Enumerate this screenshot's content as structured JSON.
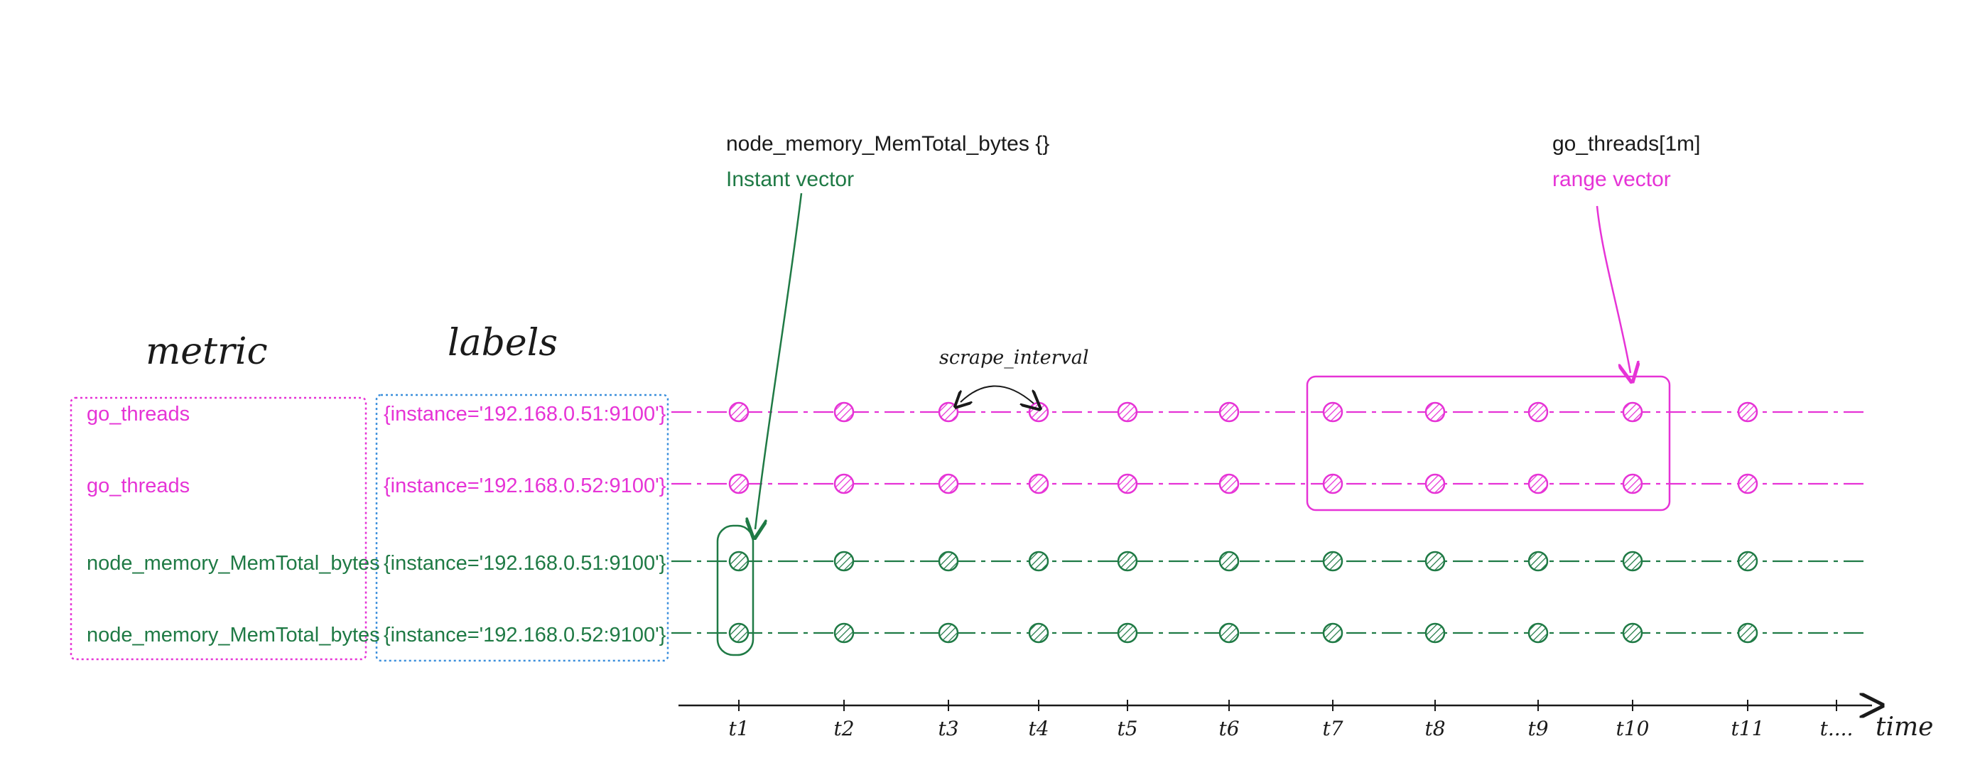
{
  "colors": {
    "magenta": "#e633d6",
    "green": "#1f7a45",
    "blue": "#3b8fdc",
    "black": "#1a1a1a"
  },
  "headers": {
    "metric": "metric",
    "labels": "labels"
  },
  "rows": [
    {
      "metric": "go_threads",
      "labels": "{instance='192.168.0.51:9100'}",
      "color": "#e633d6"
    },
    {
      "metric": "go_threads",
      "labels": "{instance='192.168.0.52:9100'}",
      "color": "#e633d6"
    },
    {
      "metric": "node_memory_MemTotal_bytes",
      "labels": "{instance='192.168.0.51:9100'}",
      "color": "#1f7a45"
    },
    {
      "metric": "node_memory_MemTotal_bytes",
      "labels": "{instance='192.168.0.52:9100'}",
      "color": "#1f7a45"
    }
  ],
  "annotations": {
    "instant_query": "node_memory_MemTotal_bytes {}",
    "instant_label": "Instant vector",
    "range_query": "go_threads[1m]",
    "range_label": "range vector",
    "scrape_interval": "scrape_interval"
  },
  "time_axis": {
    "ticks": [
      "t1",
      "t2",
      "t3",
      "t4",
      "t5",
      "t6",
      "t7",
      "t8",
      "t9",
      "t10",
      "t11",
      "t...."
    ],
    "label": "time"
  },
  "icons": {
    "sample_dot": "hatched-circle",
    "axis_arrow": "arrow-right"
  }
}
